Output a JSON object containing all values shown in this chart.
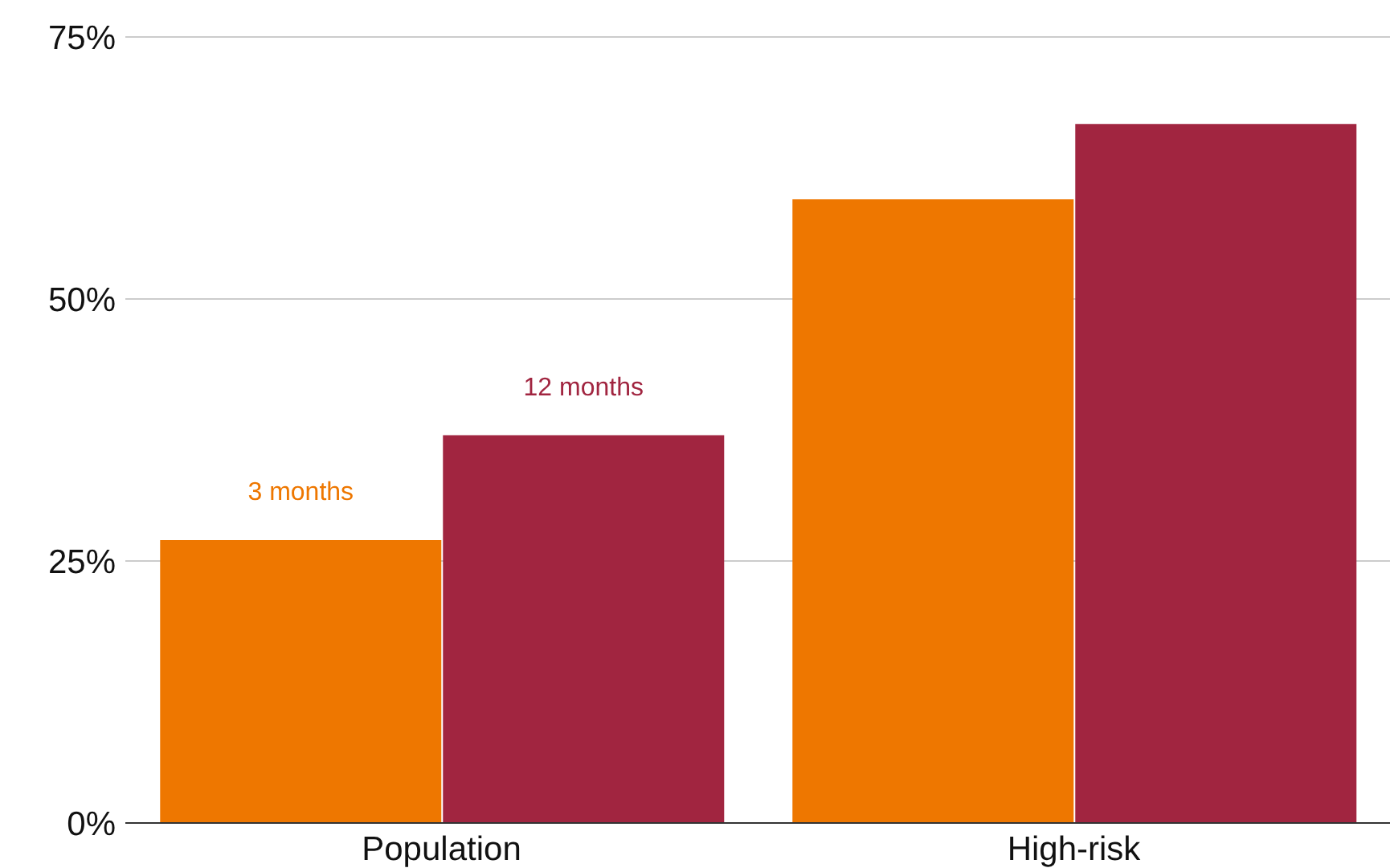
{
  "chart_data": {
    "type": "bar",
    "categories": [
      "Population",
      "High-risk"
    ],
    "series": [
      {
        "name": "3 months",
        "color": "#ee7700",
        "values": [
          27,
          59.5
        ]
      },
      {
        "name": "12 months",
        "color": "#a12540",
        "values": [
          37,
          66.7
        ]
      }
    ],
    "ylim": [
      0,
      75
    ],
    "yticks": [
      {
        "value": 0,
        "label": "0%"
      },
      {
        "value": 25,
        "label": "25%"
      },
      {
        "value": 50,
        "label": "50%"
      },
      {
        "value": 75,
        "label": "75%"
      }
    ],
    "grid": "y",
    "legend": false
  }
}
